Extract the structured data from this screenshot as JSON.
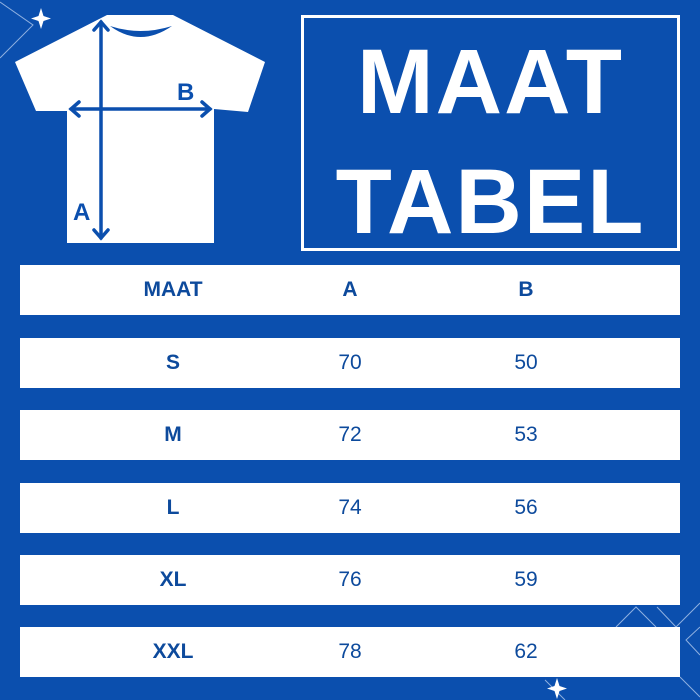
{
  "colors": {
    "background": "#0b4fae",
    "text": "#0d4a9c",
    "panel": "#ffffff"
  },
  "diagram": {
    "label_a": "A",
    "label_b": "B"
  },
  "title": {
    "line1": "MAAT",
    "line2": "TABEL"
  },
  "table": {
    "headers": [
      "MAAT",
      "A",
      "B"
    ],
    "rows": [
      [
        "S",
        "70",
        "50"
      ],
      [
        "M",
        "72",
        "53"
      ],
      [
        "L",
        "74",
        "56"
      ],
      [
        "XL",
        "76",
        "59"
      ],
      [
        "XXL",
        "78",
        "62"
      ]
    ]
  }
}
